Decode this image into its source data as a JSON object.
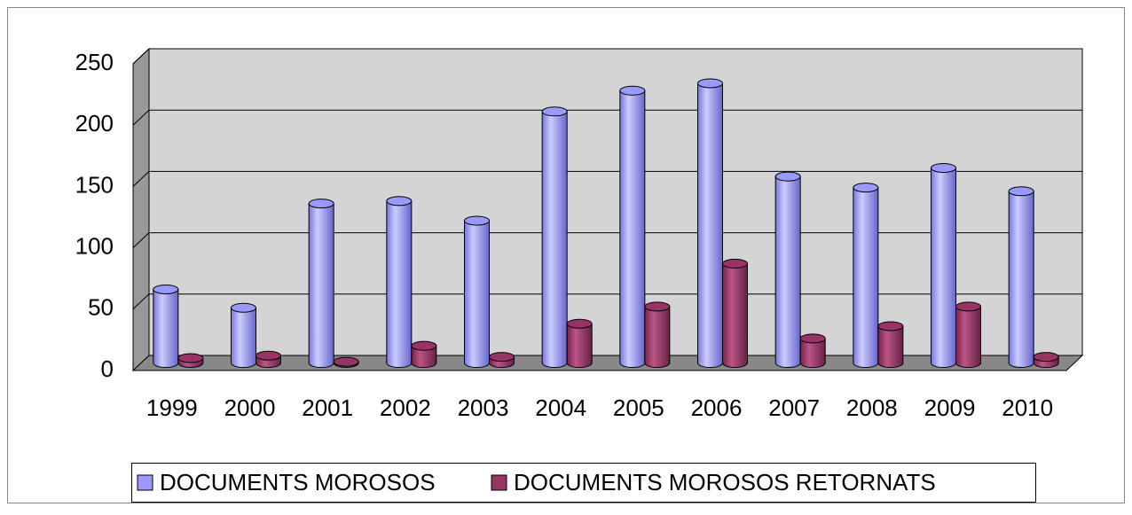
{
  "chart_data": {
    "type": "bar3d",
    "categories": [
      "1999",
      "2000",
      "2001",
      "2002",
      "2003",
      "2004",
      "2005",
      "2006",
      "2007",
      "2008",
      "2009",
      "2010"
    ],
    "series": [
      {
        "name": "DOCUMENTS MOROSOS",
        "color": "#9999ff",
        "values": [
          60,
          45,
          130,
          132,
          116,
          205,
          222,
          228,
          152,
          143,
          159,
          140
        ]
      },
      {
        "name": "DOCUMENTS MOROSOS RETORNATS",
        "color": "#993366",
        "values": [
          4,
          6,
          1,
          14,
          5,
          32,
          46,
          81,
          20,
          30,
          46,
          5
        ]
      }
    ],
    "ylim": [
      0,
      250
    ],
    "yticks": [
      0,
      50,
      100,
      150,
      200,
      250
    ],
    "grid": true,
    "legend": "bottom"
  }
}
